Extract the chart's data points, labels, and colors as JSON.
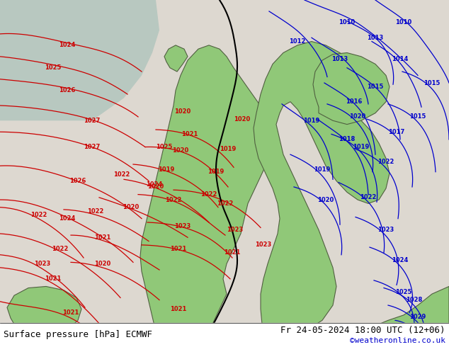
{
  "title_left": "Surface pressure [hPa] ECMWF",
  "title_right": "Fr 24-05-2024 18:00 UTC (12+06)",
  "credit": "©weatheronline.co.uk",
  "bg_color": "#d0d0d0",
  "land_color": "#90c878",
  "sea_color": "#c8d8c8",
  "map_bg": "#e8e0e0",
  "contour_low_color": "#cc0000",
  "contour_high_color": "#0000cc",
  "contour_transition_color": "#000000",
  "label_color_low": "#cc0000",
  "label_color_high": "#0000cc",
  "figsize": [
    6.34,
    4.9
  ],
  "dpi": 100
}
